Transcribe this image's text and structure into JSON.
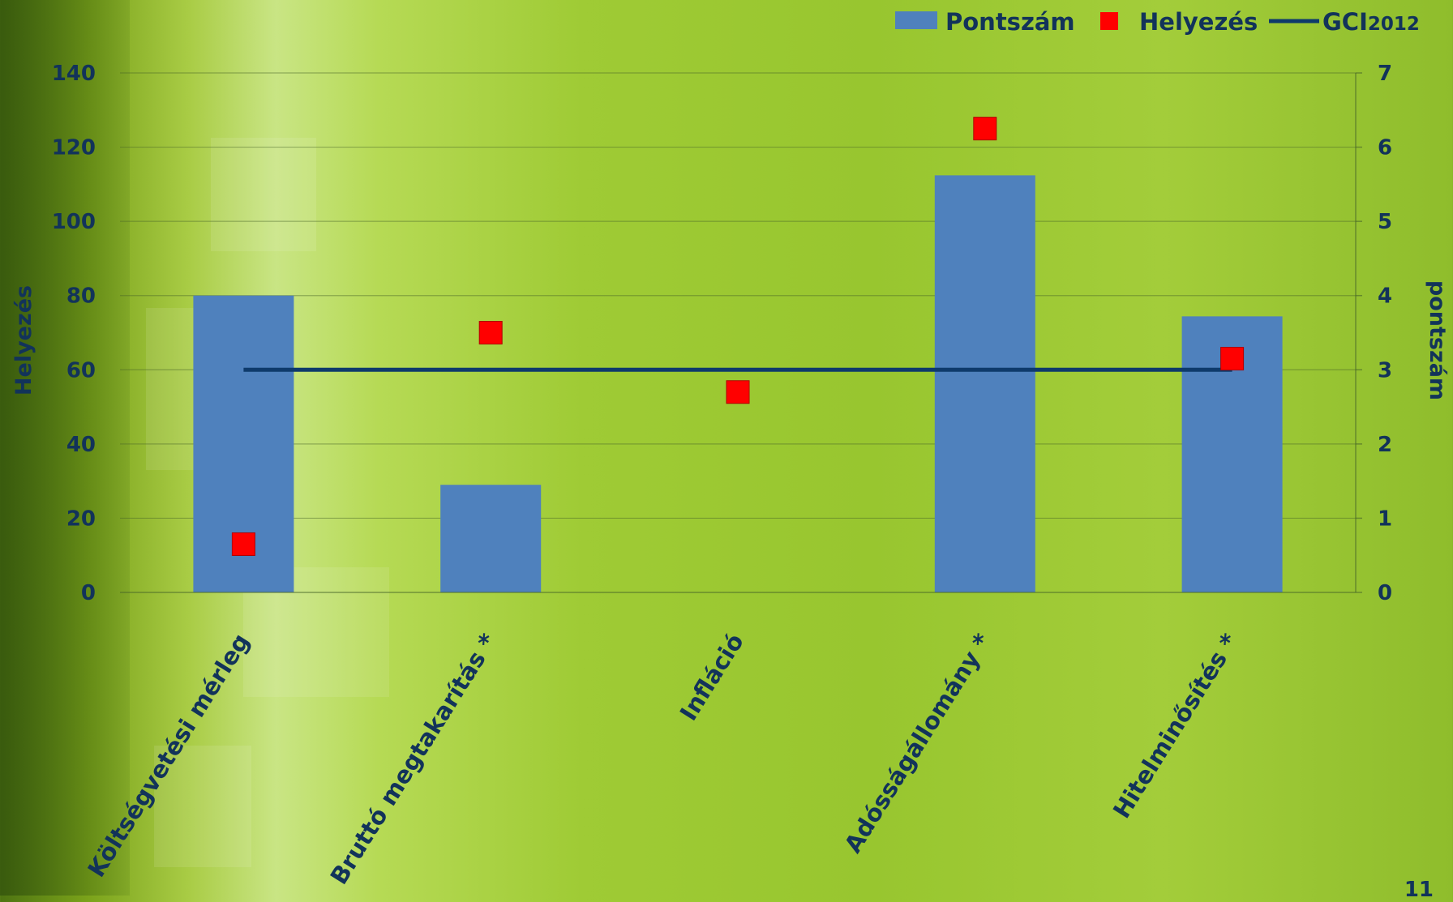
{
  "chart_data": {
    "type": "bar",
    "categories": [
      "Költségvetési mérleg",
      "Bruttó megtakarítás *",
      "Infláció",
      "Adósságállomány *",
      "Hitelminősítés *"
    ],
    "series": [
      {
        "name": "Pontszám",
        "type": "bar",
        "axis": "right",
        "values": [
          4.0,
          1.45,
          0,
          5.62,
          3.72
        ],
        "color": "#4f81bd"
      },
      {
        "name": "Helyezés",
        "type": "scatter",
        "axis": "left",
        "values": [
          13,
          70,
          54,
          125,
          63
        ],
        "color": "#ff0000"
      },
      {
        "name": "GCI2012",
        "type": "line",
        "axis": "left",
        "values": [
          60,
          60,
          60,
          60,
          60
        ],
        "color": "#0e3a6b"
      }
    ],
    "y_left": {
      "label": "Helyezés",
      "ticks": [
        "0",
        "20",
        "40",
        "60",
        "80",
        "100",
        "120",
        "140"
      ],
      "range": [
        0,
        140
      ]
    },
    "y_right": {
      "label": "pontszám",
      "ticks": [
        "0",
        "1",
        "2",
        "3",
        "4",
        "5",
        "6",
        "7"
      ],
      "range": [
        0,
        7
      ]
    },
    "legend": {
      "position": "top-right",
      "items": [
        {
          "label": "Pontszám",
          "marker": "bar"
        },
        {
          "label": "Helyezés",
          "marker": "square"
        },
        {
          "label": "GCI",
          "suffix": "2012",
          "marker": "line"
        }
      ]
    },
    "grid": true
  },
  "slide_number": "11"
}
